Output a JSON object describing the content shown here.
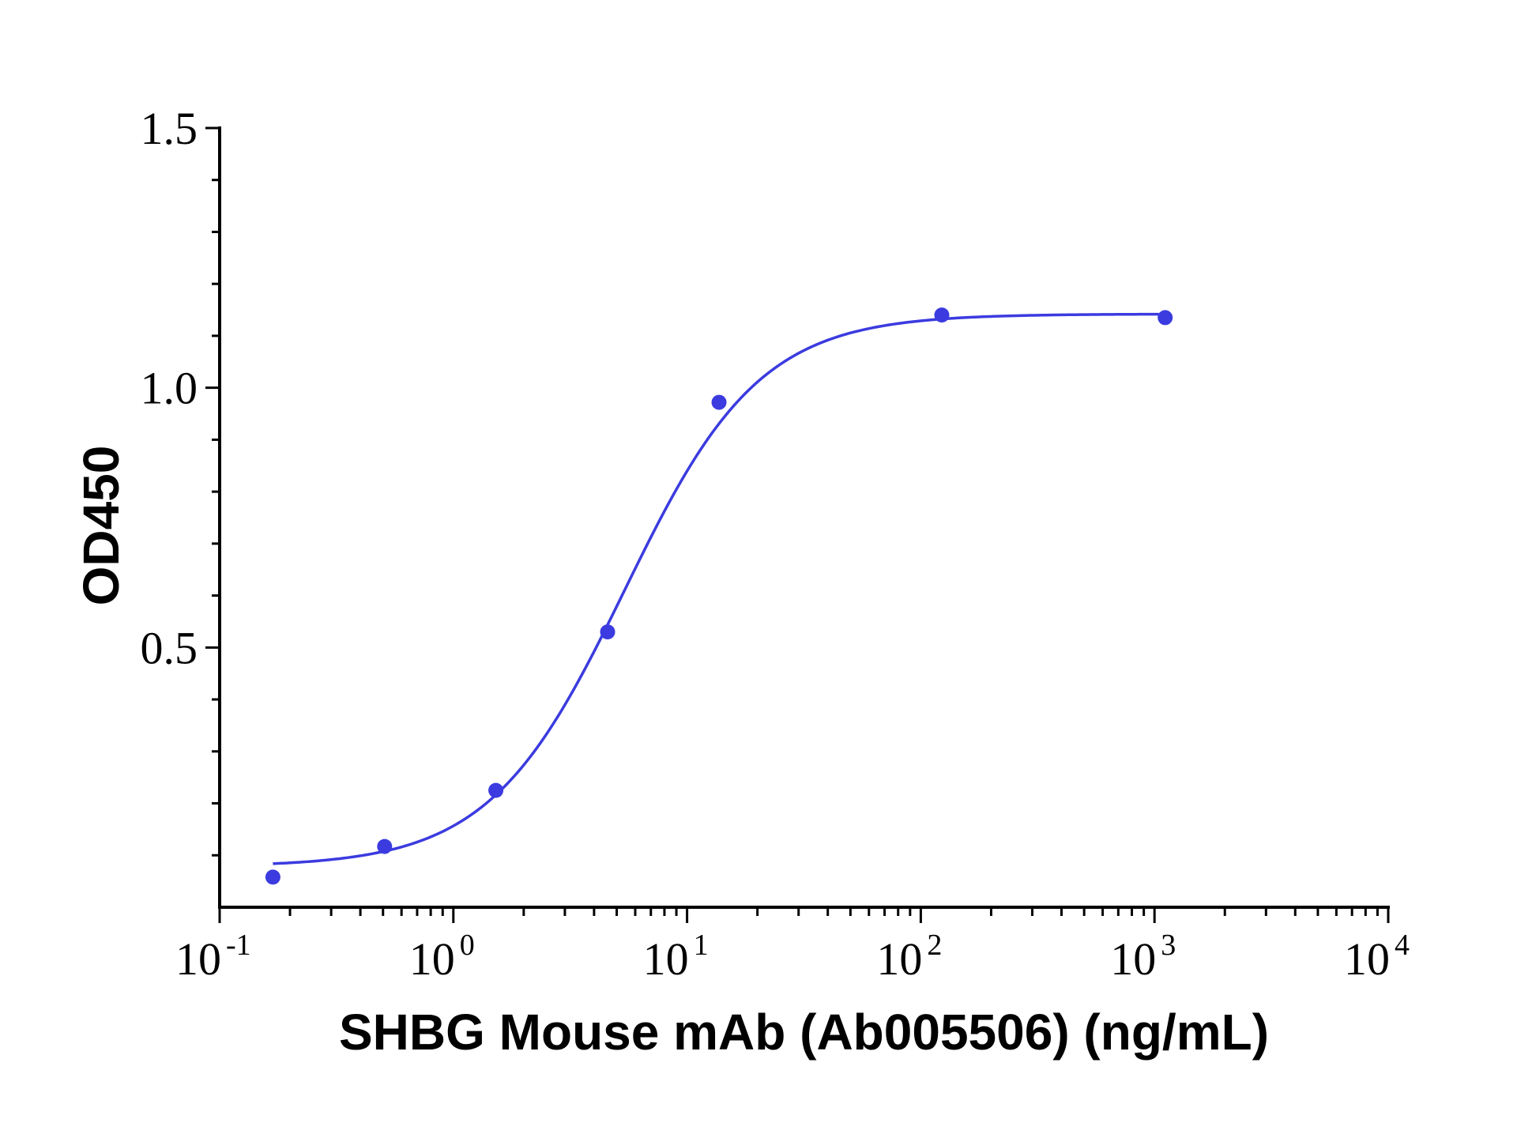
{
  "chart_data": {
    "type": "scatter",
    "title": "",
    "xlabel": "SHBG Mouse mAb (Ab005506) (ng/mL)",
    "ylabel": "OD450",
    "x_scale": "log",
    "xlim": [
      0.1,
      10000
    ],
    "ylim": [
      0.0,
      1.5
    ],
    "x_ticks": [
      {
        "value": 0.1,
        "base": "10",
        "exp": "-1"
      },
      {
        "value": 1,
        "base": "10",
        "exp": "0"
      },
      {
        "value": 10,
        "base": "10",
        "exp": "1"
      },
      {
        "value": 100,
        "base": "10",
        "exp": "2"
      },
      {
        "value": 1000,
        "base": "10",
        "exp": "3"
      },
      {
        "value": 10000,
        "base": "10",
        "exp": "4"
      }
    ],
    "y_ticks": [
      {
        "value": 0.5,
        "label": "0.5"
      },
      {
        "value": 1.0,
        "label": "1.0"
      },
      {
        "value": 1.5,
        "label": "1.5"
      }
    ],
    "grid": false,
    "legend": "none",
    "color": "#3b3be0",
    "series": [
      {
        "points": [
          {
            "x": 0.169,
            "y": 0.058
          },
          {
            "x": 0.508,
            "y": 0.117
          },
          {
            "x": 1.52,
            "y": 0.225
          },
          {
            "x": 4.57,
            "y": 0.53
          },
          {
            "x": 13.7,
            "y": 0.972
          },
          {
            "x": 123,
            "y": 1.14
          },
          {
            "x": 1111,
            "y": 1.135
          }
        ],
        "fit": {
          "model": "4PL",
          "bottom": 0.078,
          "top": 1.142,
          "ec50": 5.4,
          "hill": 1.5,
          "x_range": [
            0.169,
            1111
          ]
        }
      }
    ]
  }
}
